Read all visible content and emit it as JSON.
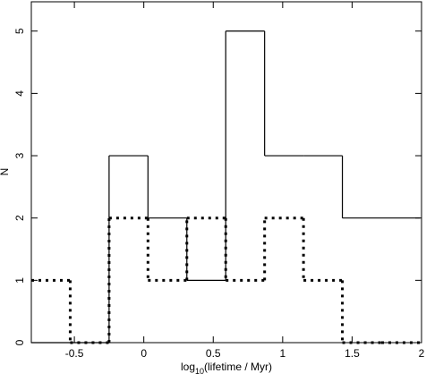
{
  "chart_data": {
    "type": "histogram",
    "xlabel": [
      "log",
      "10",
      "(lifetime / Myr)"
    ],
    "ylabel": "N",
    "bins": [
      -0.81,
      -0.53,
      -0.25,
      0.03,
      0.31,
      0.59,
      0.87,
      1.15,
      1.43,
      1.71,
      1.99
    ],
    "series": [
      {
        "color": "#000000",
        "style": "solid",
        "values": [
          0,
          0,
          3,
          2,
          1,
          5,
          3,
          3,
          2,
          2
        ]
      },
      {
        "color": "#000000",
        "style": "dotted",
        "values": [
          1,
          0,
          2,
          1,
          2,
          1,
          2,
          1,
          0,
          0
        ]
      }
    ],
    "xlim": [
      -0.81,
      2
    ],
    "ylim": [
      0,
      5.47
    ],
    "xticks": [
      -0.5,
      0,
      0.5,
      1,
      1.5,
      2
    ],
    "yticks": [
      0,
      1,
      2,
      3,
      4,
      5
    ]
  }
}
